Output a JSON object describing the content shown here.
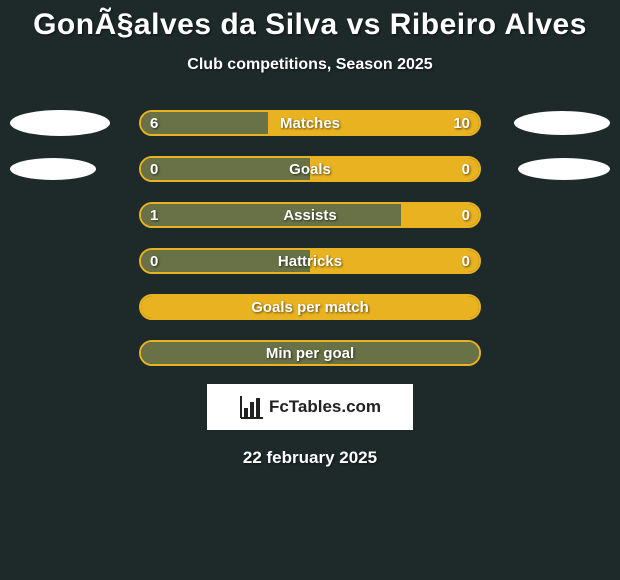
{
  "title": "GonÃ§alves da Silva vs Ribeiro Alves",
  "subtitle": "Club competitions, Season 2025",
  "date": "22 february 2025",
  "logo_text": "FcTables.com",
  "colors": {
    "background": "#1e2a2a",
    "player1_bar": "#697246",
    "player2_bar": "#e9b221",
    "ellipse": "#ffffff",
    "text": "#ffffff"
  },
  "ellipse_sizes": {
    "row0": {
      "left_w": 100,
      "left_h": 26,
      "right_w": 96,
      "right_h": 24
    },
    "row1": {
      "left_w": 86,
      "left_h": 22,
      "right_w": 92,
      "right_h": 22
    }
  },
  "rows": [
    {
      "label": "Matches",
      "left_val": "6",
      "right_val": "10",
      "left_pct": 37.5,
      "right_pct": 62.5,
      "show_ellipses": true,
      "ellipse_key": "row0"
    },
    {
      "label": "Goals",
      "left_val": "0",
      "right_val": "0",
      "left_pct": 50,
      "right_pct": 50,
      "show_ellipses": true,
      "ellipse_key": "row1"
    },
    {
      "label": "Assists",
      "left_val": "1",
      "right_val": "0",
      "left_pct": 77,
      "right_pct": 23,
      "show_ellipses": false
    },
    {
      "label": "Hattricks",
      "left_val": "0",
      "right_val": "0",
      "left_pct": 50,
      "right_pct": 50,
      "show_ellipses": false
    },
    {
      "label": "Goals per match",
      "left_val": "",
      "right_val": "",
      "left_pct": 100,
      "right_pct": 0,
      "show_ellipses": false
    },
    {
      "label": "Min per goal",
      "left_val": "",
      "right_val": "",
      "left_pct": 100,
      "right_pct": 0,
      "show_ellipses": false,
      "full_bar_color": "#697246"
    }
  ]
}
